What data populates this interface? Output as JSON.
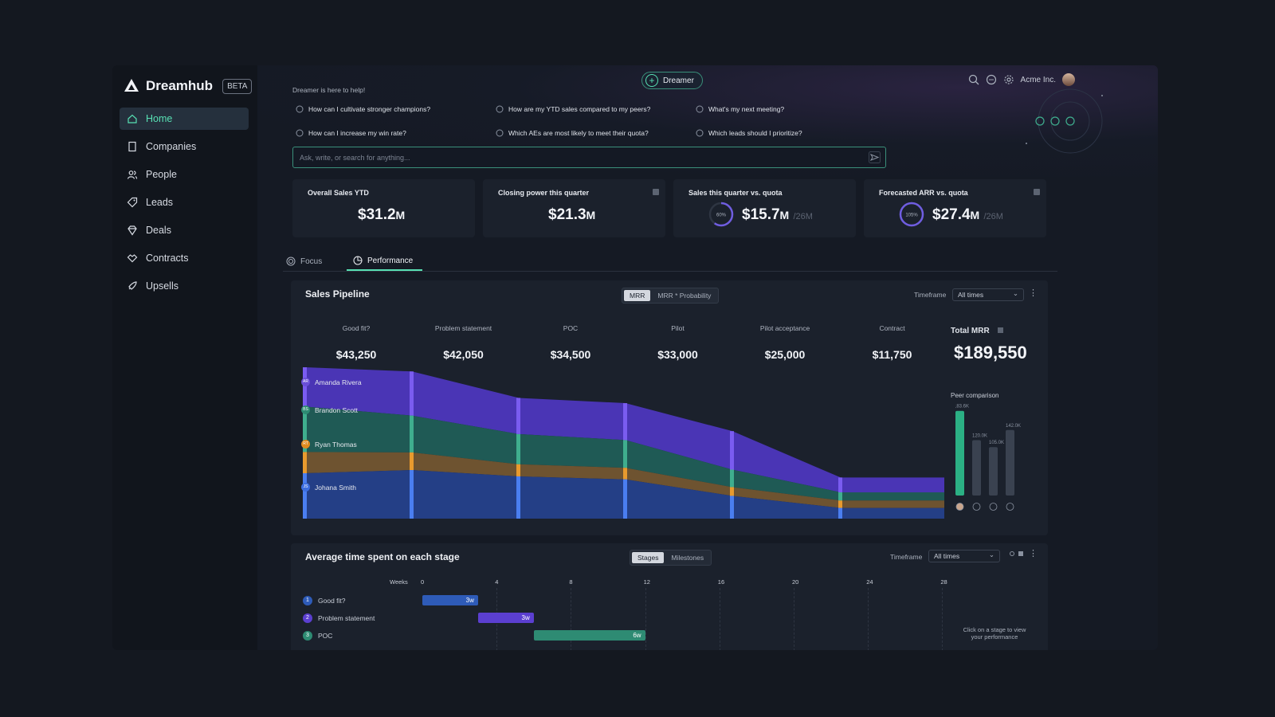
{
  "brand": {
    "name": "Dreamhub",
    "badge": "BETA"
  },
  "nav": [
    {
      "label": "Home",
      "icon": "home-icon",
      "active": true
    },
    {
      "label": "Companies",
      "icon": "building-icon"
    },
    {
      "label": "People",
      "icon": "people-icon"
    },
    {
      "label": "Leads",
      "icon": "tag-icon"
    },
    {
      "label": "Deals",
      "icon": "diamond-icon"
    },
    {
      "label": "Contracts",
      "icon": "handshake-icon"
    },
    {
      "label": "Upsells",
      "icon": "rocket-icon"
    }
  ],
  "header": {
    "dreamer_label": "Dreamer",
    "company": "Acme Inc."
  },
  "assistant": {
    "helper": "Dreamer is here to help!",
    "suggestions": [
      "How can I cultivate stronger champions?",
      "How are my YTD sales compared to my peers?",
      "What's my next meeting?",
      "How can I increase my win rate?",
      "Which AEs are most likely to meet their quota?",
      "Which leads should I prioritize?"
    ],
    "search_placeholder": "Ask, write, or search for anything..."
  },
  "kpis": [
    {
      "title": "Overall Sales YTD",
      "value": "$31.2",
      "unit": "M",
      "sub": ""
    },
    {
      "title": "Closing power this quarter",
      "value": "$21.3",
      "unit": "M",
      "sub": ""
    },
    {
      "title": "Sales this quarter vs. quota",
      "value": "$15.7",
      "unit": "M",
      "sub": "/26M",
      "ring_label": "60%",
      "ring_pct": 0.6
    },
    {
      "title": "Forecasted ARR vs. quota",
      "value": "$27.4",
      "unit": "M",
      "sub": "/26M",
      "ring_label": "105%",
      "ring_pct": 1.0
    }
  ],
  "tabs": [
    {
      "label": "Focus",
      "active": false
    },
    {
      "label": "Performance",
      "active": true
    }
  ],
  "pipeline": {
    "title": "Sales Pipeline",
    "toggle": [
      "MRR",
      "MRR * Probability"
    ],
    "timeframe_label": "Timeframe",
    "timeframe_value": "All times",
    "stages": [
      {
        "name": "Good fit?",
        "value": "$43,250"
      },
      {
        "name": "Problem statement",
        "value": "$42,050"
      },
      {
        "name": "POC",
        "value": "$34,500"
      },
      {
        "name": "Pilot",
        "value": "$33,000"
      },
      {
        "name": "Pilot acceptance",
        "value": "$25,000"
      },
      {
        "name": "Contract",
        "value": "$11,750"
      }
    ],
    "total_label": "Total MRR",
    "total_value": "$189,550",
    "peer_label": "Peer comparison",
    "peer_values": [
      "183.6K",
      "120.0K",
      "105.0K",
      "142.0K"
    ],
    "reps": [
      {
        "name": "Amanda Rivera",
        "initials": "AR",
        "color": "#6a4fd8"
      },
      {
        "name": "Brandon Scott",
        "initials": "BS",
        "color": "#2e8b73"
      },
      {
        "name": "Ryan Thomas",
        "initials": "RT",
        "color": "#e08a1e"
      },
      {
        "name": "Johana Smith",
        "initials": "JS",
        "color": "#3d6ee0"
      }
    ],
    "colors": {
      "purple": "#4a35b5",
      "green": "#1f5a55",
      "orange": "#6e5330",
      "blue": "#243f86"
    }
  },
  "time_spent": {
    "title": "Average time spent on each stage",
    "toggle": [
      "Stages",
      "Milestones"
    ],
    "timeframe_label": "Timeframe",
    "timeframe_value": "All times",
    "axis_label": "Weeks",
    "ticks": [
      "0",
      "4",
      "8",
      "12",
      "16",
      "20",
      "24",
      "28"
    ],
    "steps": [
      {
        "num": "1",
        "name": "Good fit?",
        "start": 0,
        "weeks": 3,
        "label": "3w",
        "color": "#2e5bb8"
      },
      {
        "num": "2",
        "name": "Problem statement",
        "start": 3,
        "weeks": 3,
        "label": "3w",
        "color": "#5b3fd0"
      },
      {
        "num": "3",
        "name": "POC",
        "start": 6,
        "weeks": 6,
        "label": "6w",
        "color": "#2e8b73"
      }
    ],
    "hint": "Click on a stage to view your performance"
  }
}
